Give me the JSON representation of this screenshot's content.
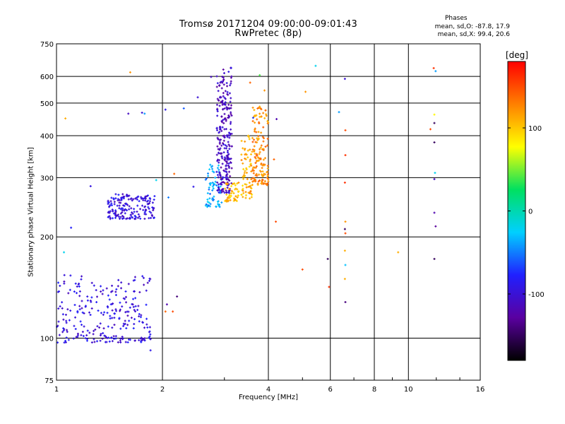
{
  "title": "Tromsø 20171204 09:00:00-09:01:43",
  "subtitle": "RwPretec (8p)",
  "stats": {
    "title": "Phases",
    "o_line": "mean, sd,O: -87.8, 17.9",
    "x_line": "mean, sd,X:  99.4, 20.6"
  },
  "colorbar": {
    "title": "[deg]",
    "ticks": [
      {
        "value": 100,
        "label": "100"
      },
      {
        "value": 0,
        "label": "0"
      },
      {
        "value": -100,
        "label": "-100"
      }
    ],
    "range": [
      -180,
      180
    ],
    "colors": [
      "#000000",
      "#5a00a0",
      "#2020ff",
      "#00d0ff",
      "#00e060",
      "#ffff00",
      "#ff8000",
      "#ff0000"
    ]
  },
  "chart_data": {
    "type": "scatter",
    "title": "Tromsø 20171204 09:00:00-09:01:43",
    "subtitle": "RwPretec (8p)",
    "xlabel": "Frequency [MHz]",
    "ylabel": "Stationary phase Virtual Height [km]",
    "x_scale": "log",
    "y_scale": "log",
    "xlim": [
      1,
      16
    ],
    "ylim": [
      75,
      750
    ],
    "grid": true,
    "x_ticks": [
      {
        "value": 1,
        "label": "1"
      },
      {
        "value": 2,
        "label": "2"
      },
      {
        "value": 4,
        "label": "4"
      },
      {
        "value": 6,
        "label": "6"
      },
      {
        "value": 8,
        "label": "8"
      },
      {
        "value": 10,
        "label": "10"
      },
      {
        "value": 16,
        "label": "16"
      }
    ],
    "y_ticks": [
      {
        "value": 75,
        "label": "75"
      },
      {
        "value": 100,
        "label": "100"
      },
      {
        "value": 200,
        "label": "200"
      },
      {
        "value": 300,
        "label": "300"
      },
      {
        "value": 400,
        "label": "400"
      },
      {
        "value": 500,
        "label": "500"
      },
      {
        "value": 600,
        "label": "600"
      },
      {
        "value": 750,
        "label": "750"
      }
    ],
    "color_variable": "phase [deg]",
    "clusters": [
      {
        "x_range": [
          1.0,
          1.85
        ],
        "y_range": [
          97,
          155
        ],
        "phase": -95,
        "count": 260
      },
      {
        "x_range": [
          1.4,
          1.9
        ],
        "y_range": [
          226,
          268
        ],
        "phase": -95,
        "count": 180
      },
      {
        "x_range": [
          2.65,
          2.95
        ],
        "y_range": [
          245,
          330
        ],
        "phase": -40,
        "count": 70
      },
      {
        "x_range": [
          2.85,
          3.15
        ],
        "y_range": [
          270,
          640
        ],
        "phase": -110,
        "count": 260
      },
      {
        "x_range": [
          3.0,
          3.3
        ],
        "y_range": [
          255,
          290
        ],
        "phase": 105,
        "count": 50
      },
      {
        "x_range": [
          3.35,
          3.6
        ],
        "y_range": [
          260,
          400
        ],
        "phase": 110,
        "count": 70
      },
      {
        "x_range": [
          3.6,
          4.0
        ],
        "y_range": [
          285,
          490
        ],
        "phase": 125,
        "count": 150
      }
    ],
    "points": [
      {
        "x": 1.05,
        "y": 180,
        "phase": -20
      },
      {
        "x": 1.06,
        "y": 450,
        "phase": 110
      },
      {
        "x": 1.1,
        "y": 213,
        "phase": -80
      },
      {
        "x": 1.25,
        "y": 283,
        "phase": -95
      },
      {
        "x": 1.6,
        "y": 465,
        "phase": -110
      },
      {
        "x": 1.62,
        "y": 617,
        "phase": 120
      },
      {
        "x": 1.75,
        "y": 468,
        "phase": -100
      },
      {
        "x": 1.78,
        "y": 465,
        "phase": -40
      },
      {
        "x": 1.85,
        "y": 92,
        "phase": -90
      },
      {
        "x": 1.92,
        "y": 295,
        "phase": -20
      },
      {
        "x": 2.04,
        "y": 478,
        "phase": -90
      },
      {
        "x": 2.04,
        "y": 120,
        "phase": 140
      },
      {
        "x": 2.08,
        "y": 262,
        "phase": -50
      },
      {
        "x": 2.06,
        "y": 126,
        "phase": -120
      },
      {
        "x": 2.14,
        "y": 120,
        "phase": 150
      },
      {
        "x": 2.16,
        "y": 308,
        "phase": 140
      },
      {
        "x": 2.2,
        "y": 133,
        "phase": -140
      },
      {
        "x": 2.3,
        "y": 482,
        "phase": -60
      },
      {
        "x": 2.45,
        "y": 282,
        "phase": -90
      },
      {
        "x": 2.52,
        "y": 520,
        "phase": -100
      },
      {
        "x": 2.75,
        "y": 598,
        "phase": -110
      },
      {
        "x": 3.55,
        "y": 575,
        "phase": 140
      },
      {
        "x": 3.62,
        "y": 452,
        "phase": -70
      },
      {
        "x": 3.78,
        "y": 605,
        "phase": 40
      },
      {
        "x": 3.9,
        "y": 545,
        "phase": 120
      },
      {
        "x": 4.22,
        "y": 448,
        "phase": -120
      },
      {
        "x": 4.15,
        "y": 340,
        "phase": 140
      },
      {
        "x": 4.2,
        "y": 222,
        "phase": 150
      },
      {
        "x": 5.0,
        "y": 160,
        "phase": 150
      },
      {
        "x": 5.1,
        "y": 540,
        "phase": 120
      },
      {
        "x": 5.45,
        "y": 645,
        "phase": -20
      },
      {
        "x": 5.9,
        "y": 172,
        "phase": -150
      },
      {
        "x": 5.95,
        "y": 142,
        "phase": 160
      },
      {
        "x": 6.35,
        "y": 470,
        "phase": -40
      },
      {
        "x": 6.6,
        "y": 590,
        "phase": -100
      },
      {
        "x": 6.62,
        "y": 415,
        "phase": 150
      },
      {
        "x": 6.62,
        "y": 350,
        "phase": 160
      },
      {
        "x": 6.6,
        "y": 290,
        "phase": 160
      },
      {
        "x": 6.62,
        "y": 222,
        "phase": 120
      },
      {
        "x": 6.6,
        "y": 211,
        "phase": -150
      },
      {
        "x": 6.62,
        "y": 205,
        "phase": 150
      },
      {
        "x": 6.6,
        "y": 182,
        "phase": 110
      },
      {
        "x": 6.62,
        "y": 165,
        "phase": -30
      },
      {
        "x": 6.6,
        "y": 150,
        "phase": 110
      },
      {
        "x": 6.62,
        "y": 128,
        "phase": -140
      },
      {
        "x": 9.35,
        "y": 180,
        "phase": 110
      },
      {
        "x": 11.55,
        "y": 418,
        "phase": 150
      },
      {
        "x": 11.8,
        "y": 635,
        "phase": 160
      },
      {
        "x": 11.95,
        "y": 622,
        "phase": -40
      },
      {
        "x": 11.85,
        "y": 462,
        "phase": 80
      },
      {
        "x": 11.85,
        "y": 436,
        "phase": -150
      },
      {
        "x": 11.85,
        "y": 382,
        "phase": -150
      },
      {
        "x": 11.9,
        "y": 310,
        "phase": -20
      },
      {
        "x": 11.85,
        "y": 297,
        "phase": -110
      },
      {
        "x": 11.85,
        "y": 236,
        "phase": -120
      },
      {
        "x": 11.95,
        "y": 215,
        "phase": -130
      },
      {
        "x": 11.85,
        "y": 172,
        "phase": -150
      }
    ]
  }
}
